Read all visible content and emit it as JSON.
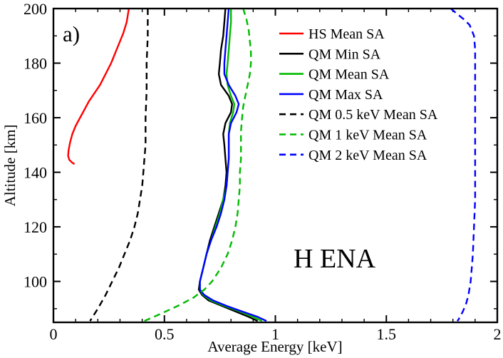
{
  "figure": {
    "panel_label": "a)",
    "annotation": "H ENA"
  },
  "chart_data": {
    "type": "line",
    "title": "",
    "xlabel": "Average Energy [keV]",
    "ylabel": "Altitude [km]",
    "xlim": [
      0,
      2
    ],
    "ylim": [
      85,
      200
    ],
    "grid": false,
    "legend_position": "top-right-inside",
    "x_ticks": {
      "major": [
        0,
        0.5,
        1,
        1.5,
        2
      ],
      "labels": [
        "0",
        "0.5",
        "1",
        "1.5",
        "2"
      ],
      "minor_step": 0.1
    },
    "y_ticks": {
      "major": [
        100,
        120,
        140,
        160,
        180,
        200
      ],
      "labels": [
        "100",
        "120",
        "140",
        "160",
        "180",
        "200"
      ],
      "minor_step": 10
    },
    "series": [
      {
        "name": "HS Mean SA",
        "color": "#ff0000",
        "style": "solid",
        "points": [
          [
            0.34,
            200
          ],
          [
            0.33,
            195
          ],
          [
            0.315,
            191
          ],
          [
            0.3,
            188
          ],
          [
            0.28,
            184
          ],
          [
            0.26,
            180
          ],
          [
            0.235,
            176
          ],
          [
            0.21,
            172
          ],
          [
            0.185,
            169
          ],
          [
            0.16,
            166
          ],
          [
            0.14,
            163
          ],
          [
            0.12,
            160
          ],
          [
            0.1,
            157
          ],
          [
            0.085,
            154
          ],
          [
            0.075,
            151
          ],
          [
            0.068,
            148
          ],
          [
            0.066,
            146
          ],
          [
            0.072,
            144.5
          ],
          [
            0.085,
            143.5
          ],
          [
            0.095,
            143
          ]
        ]
      },
      {
        "name": "QM Min SA",
        "color": "#000000",
        "style": "solid",
        "points": [
          [
            0.775,
            200
          ],
          [
            0.77,
            195
          ],
          [
            0.765,
            190
          ],
          [
            0.755,
            185
          ],
          [
            0.75,
            180
          ],
          [
            0.745,
            176
          ],
          [
            0.755,
            172
          ],
          [
            0.79,
            168
          ],
          [
            0.805,
            165
          ],
          [
            0.8,
            162
          ],
          [
            0.775,
            158
          ],
          [
            0.765,
            154
          ],
          [
            0.77,
            150
          ],
          [
            0.775,
            145
          ],
          [
            0.78,
            140
          ],
          [
            0.775,
            135
          ],
          [
            0.765,
            130
          ],
          [
            0.745,
            125
          ],
          [
            0.725,
            120
          ],
          [
            0.705,
            115
          ],
          [
            0.69,
            110
          ],
          [
            0.675,
            105
          ],
          [
            0.66,
            100
          ],
          [
            0.655,
            97
          ],
          [
            0.67,
            95
          ],
          [
            0.7,
            93
          ],
          [
            0.76,
            91
          ],
          [
            0.82,
            89
          ],
          [
            0.88,
            87
          ],
          [
            0.92,
            85.5
          ]
        ]
      },
      {
        "name": "QM Mean SA",
        "color": "#00bb00",
        "style": "solid",
        "points": [
          [
            0.8,
            200
          ],
          [
            0.8,
            195
          ],
          [
            0.795,
            190
          ],
          [
            0.79,
            185
          ],
          [
            0.785,
            180
          ],
          [
            0.78,
            176
          ],
          [
            0.785,
            172
          ],
          [
            0.8,
            168
          ],
          [
            0.815,
            165
          ],
          [
            0.81,
            162
          ],
          [
            0.795,
            158
          ],
          [
            0.79,
            154
          ],
          [
            0.79,
            150
          ],
          [
            0.79,
            145
          ],
          [
            0.785,
            140
          ],
          [
            0.78,
            135
          ],
          [
            0.765,
            130
          ],
          [
            0.75,
            125
          ],
          [
            0.73,
            120
          ],
          [
            0.71,
            115
          ],
          [
            0.69,
            110
          ],
          [
            0.675,
            105
          ],
          [
            0.66,
            100
          ],
          [
            0.66,
            97
          ],
          [
            0.675,
            95
          ],
          [
            0.71,
            93
          ],
          [
            0.77,
            91
          ],
          [
            0.84,
            89
          ],
          [
            0.9,
            87
          ],
          [
            0.94,
            85.5
          ]
        ]
      },
      {
        "name": "QM Max SA",
        "color": "#0000ff",
        "style": "solid",
        "points": [
          [
            0.79,
            200
          ],
          [
            0.785,
            195
          ],
          [
            0.78,
            190
          ],
          [
            0.775,
            185
          ],
          [
            0.77,
            180
          ],
          [
            0.77,
            176
          ],
          [
            0.79,
            172
          ],
          [
            0.82,
            168
          ],
          [
            0.835,
            165
          ],
          [
            0.825,
            162
          ],
          [
            0.8,
            158
          ],
          [
            0.79,
            154
          ],
          [
            0.79,
            150
          ],
          [
            0.79,
            145
          ],
          [
            0.785,
            140
          ],
          [
            0.78,
            135
          ],
          [
            0.77,
            130
          ],
          [
            0.755,
            125
          ],
          [
            0.735,
            120
          ],
          [
            0.71,
            115
          ],
          [
            0.69,
            110
          ],
          [
            0.675,
            105
          ],
          [
            0.66,
            100
          ],
          [
            0.66,
            97
          ],
          [
            0.68,
            95
          ],
          [
            0.72,
            93
          ],
          [
            0.78,
            91
          ],
          [
            0.85,
            89
          ],
          [
            0.92,
            87
          ],
          [
            0.96,
            85.5
          ]
        ]
      },
      {
        "name": "QM 0.5 keV Mean SA",
        "color": "#000000",
        "style": "dashed",
        "points": [
          [
            0.425,
            200
          ],
          [
            0.425,
            190
          ],
          [
            0.42,
            180
          ],
          [
            0.42,
            170
          ],
          [
            0.415,
            160
          ],
          [
            0.415,
            150
          ],
          [
            0.41,
            145
          ],
          [
            0.405,
            140
          ],
          [
            0.4,
            135
          ],
          [
            0.39,
            130
          ],
          [
            0.38,
            125
          ],
          [
            0.365,
            120
          ],
          [
            0.345,
            115
          ],
          [
            0.32,
            110
          ],
          [
            0.295,
            105
          ],
          [
            0.265,
            100
          ],
          [
            0.235,
            95
          ],
          [
            0.2,
            90
          ],
          [
            0.165,
            85.5
          ]
        ]
      },
      {
        "name": "QM 1 keV Mean SA",
        "color": "#00bb00",
        "style": "dashed",
        "points": [
          [
            0.855,
            200
          ],
          [
            0.87,
            196
          ],
          [
            0.88,
            192
          ],
          [
            0.885,
            188
          ],
          [
            0.89,
            184
          ],
          [
            0.89,
            180
          ],
          [
            0.885,
            176
          ],
          [
            0.875,
            172
          ],
          [
            0.865,
            168
          ],
          [
            0.855,
            164
          ],
          [
            0.85,
            160
          ],
          [
            0.845,
            155
          ],
          [
            0.845,
            150
          ],
          [
            0.845,
            145
          ],
          [
            0.84,
            140
          ],
          [
            0.84,
            135
          ],
          [
            0.835,
            130
          ],
          [
            0.83,
            125
          ],
          [
            0.82,
            120
          ],
          [
            0.805,
            115
          ],
          [
            0.785,
            110
          ],
          [
            0.755,
            105
          ],
          [
            0.715,
            100
          ],
          [
            0.68,
            97
          ],
          [
            0.63,
            94
          ],
          [
            0.56,
            91
          ],
          [
            0.48,
            88
          ],
          [
            0.41,
            85.5
          ]
        ]
      },
      {
        "name": "QM 2 keV Mean SA",
        "color": "#0000ff",
        "style": "dashed",
        "points": [
          [
            1.79,
            200
          ],
          [
            1.82,
            198
          ],
          [
            1.85,
            196
          ],
          [
            1.875,
            194
          ],
          [
            1.885,
            192
          ],
          [
            1.895,
            190
          ],
          [
            1.9,
            185
          ],
          [
            1.9,
            180
          ],
          [
            1.9,
            170
          ],
          [
            1.9,
            160
          ],
          [
            1.9,
            150
          ],
          [
            1.9,
            140
          ],
          [
            1.9,
            130
          ],
          [
            1.895,
            120
          ],
          [
            1.89,
            110
          ],
          [
            1.885,
            105
          ],
          [
            1.88,
            100
          ],
          [
            1.87,
            95
          ],
          [
            1.86,
            92
          ],
          [
            1.845,
            89
          ],
          [
            1.825,
            86
          ],
          [
            1.82,
            85.5
          ]
        ]
      }
    ]
  }
}
